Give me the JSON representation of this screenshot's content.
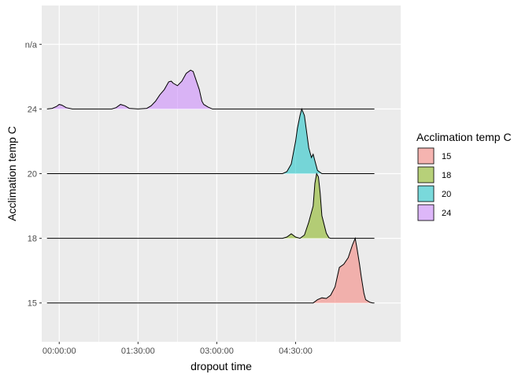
{
  "chart_data": {
    "type": "ridgeline",
    "xlabel": "dropout time",
    "ylabel": "Acclimation temp C",
    "x_range_minutes": [
      -20,
      390
    ],
    "x_ticks": [
      {
        "minutes": 0,
        "label": "00:00:00"
      },
      {
        "minutes": 90,
        "label": "01:30:00"
      },
      {
        "minutes": 180,
        "label": "03:00:00"
      },
      {
        "minutes": 270,
        "label": "04:30:00"
      }
    ],
    "categories": [
      "15",
      "18",
      "20",
      "24",
      "n/a"
    ],
    "ridge_scale": 1.0,
    "legend": {
      "title": "Acclimation temp C",
      "position": "right",
      "entries": [
        "15",
        "18",
        "20",
        "24"
      ]
    },
    "series": [
      {
        "name": "15",
        "color": "#F8766D",
        "baseline": "15",
        "x": [
          -14,
          290,
          295,
          300,
          305,
          310,
          315,
          320,
          325,
          330,
          335,
          338,
          340,
          343,
          345,
          348,
          350,
          355,
          358,
          360
        ],
        "density": [
          0,
          0,
          0.05,
          0.08,
          0.07,
          0.12,
          0.25,
          0.55,
          0.6,
          0.7,
          0.9,
          1.0,
          0.85,
          0.6,
          0.4,
          0.15,
          0.05,
          0.01,
          0,
          0
        ]
      },
      {
        "name": "18",
        "color": "#7CAE00",
        "baseline": "18",
        "x": [
          -14,
          255,
          260,
          265,
          270,
          275,
          280,
          285,
          290,
          292,
          294,
          296,
          298,
          300,
          305,
          308,
          310,
          315,
          360
        ],
        "density": [
          0,
          0,
          0.02,
          0.07,
          0.02,
          0,
          0.05,
          0.25,
          0.5,
          0.85,
          1.0,
          0.95,
          0.7,
          0.35,
          0.08,
          0.01,
          0,
          0,
          0
        ]
      },
      {
        "name": "20",
        "color": "#00BFC4",
        "baseline": "20",
        "x": [
          -14,
          255,
          260,
          265,
          270,
          272,
          275,
          277,
          280,
          283,
          285,
          288,
          290,
          292,
          295,
          300,
          360
        ],
        "density": [
          0,
          0,
          0.03,
          0.15,
          0.5,
          0.7,
          0.9,
          1.0,
          0.9,
          0.6,
          0.4,
          0.25,
          0.3,
          0.2,
          0.05,
          0,
          0
        ]
      },
      {
        "name": "24",
        "color": "#C77CFF",
        "baseline": "24",
        "x": [
          -14,
          -8,
          -3,
          0,
          3,
          8,
          15,
          60,
          65,
          70,
          75,
          80,
          90,
          100,
          105,
          110,
          115,
          120,
          125,
          128,
          130,
          135,
          140,
          145,
          150,
          153,
          155,
          160,
          163,
          165,
          170,
          175,
          360
        ],
        "density": [
          0,
          0.01,
          0.04,
          0.07,
          0.06,
          0.02,
          0,
          0,
          0.02,
          0.07,
          0.05,
          0.01,
          0,
          0.01,
          0.05,
          0.12,
          0.22,
          0.3,
          0.42,
          0.43,
          0.4,
          0.36,
          0.43,
          0.55,
          0.6,
          0.58,
          0.5,
          0.3,
          0.12,
          0.07,
          0.03,
          0,
          0
        ]
      }
    ]
  }
}
